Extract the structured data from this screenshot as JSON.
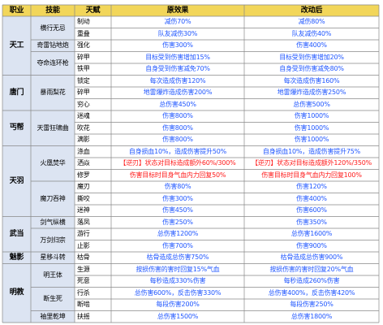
{
  "colors": {
    "header_bg": "#f2d65a",
    "class_bg": "#dce4f2",
    "talent_bg": "#ffffff",
    "blue_text": "#1f56ff",
    "red_text": "#ff1a1a",
    "border": "#888888"
  },
  "header": {
    "class": "职业",
    "skill": "技能",
    "talent": "天赋",
    "before": "原效果",
    "after": "改动后"
  },
  "classes": [
    {
      "name": "天工"
    },
    {
      "name": "唐门"
    },
    {
      "name": "丐帮"
    },
    {
      "name": "天羽"
    },
    {
      "name": "武当"
    },
    {
      "name": "魅影"
    },
    {
      "name": "明教"
    }
  ],
  "skills": [
    {
      "name": "横行无忌"
    },
    {
      "name": "奇雷钻地炮"
    },
    {
      "name": "夺命连环枪"
    },
    {
      "name": "暴雨梨花"
    },
    {
      "name": "天雷狂啸曲"
    },
    {
      "name": "火凰焚华"
    },
    {
      "name": "魔刀吞神"
    },
    {
      "name": "剑气纵横"
    },
    {
      "name": "万剑归宗"
    },
    {
      "name": "星移斗转"
    },
    {
      "name": "明王体"
    },
    {
      "name": "断生死"
    },
    {
      "name": "袖里乾坤"
    }
  ],
  "rows": [
    {
      "talent": "制动",
      "before": "减伤70%",
      "after": "减伤80%",
      "bc": "b",
      "ac": "b"
    },
    {
      "talent": "重叠",
      "before": "队友减伤30%",
      "after": "队友减伤40%",
      "bc": "b",
      "ac": "b"
    },
    {
      "talent": "强化",
      "before": "伤害300%",
      "after": "伤害400%",
      "bc": "b",
      "ac": "b"
    },
    {
      "talent": "碎甲",
      "before": "目标受到伤害增加15%",
      "after": "目标受到伤害增加20%",
      "bc": "b",
      "ac": "b"
    },
    {
      "talent": "铁甲",
      "before": "自身受到伤害减免70%",
      "after": "自身受到伤害减免80%",
      "bc": "b",
      "ac": "b"
    },
    {
      "talent": "锁定",
      "before": "每次造成伤害120%",
      "after": "每次造成伤害160%",
      "bc": "b",
      "ac": "b"
    },
    {
      "talent": "碎甲",
      "before": "地雷爆炸造成伤害200%",
      "after": "地雷爆炸造成伤害250%",
      "bc": "b",
      "ac": "b"
    },
    {
      "talent": "穷心",
      "before": "总伤害450%",
      "after": "总伤害500%",
      "bc": "b",
      "ac": "b"
    },
    {
      "talent": "迷魂",
      "before": "伤害800%",
      "after": "伤害1000%",
      "bc": "b",
      "ac": "b"
    },
    {
      "talent": "吹花",
      "before": "伤害800%",
      "after": "伤害1000%",
      "bc": "b",
      "ac": "b"
    },
    {
      "talent": "满影",
      "before": "伤害800%",
      "after": "伤害1000%",
      "bc": "b",
      "ac": "b"
    },
    {
      "talent": "涤血",
      "before": "自身损血10%，造成伤害提升50%",
      "after": "自身损血10%，造成伤害提升75%",
      "bc": "b",
      "ac": "b"
    },
    {
      "talent": "洒焱",
      "before": "【逆刃】状态对目标造成额外60%/300%",
      "after": "【逆刃】状态对目标造成额外120%/350%",
      "bc": "r",
      "ac": "r"
    },
    {
      "talent": "修罗",
      "before": "伤害目标时目身气血内力回复50%",
      "after": "伤害目标时目身气血内力回复100%",
      "bc": "r",
      "ac": "r"
    },
    {
      "talent": "魔刃",
      "before": "伤害80%",
      "after": "伤害120%",
      "bc": "b",
      "ac": "b"
    },
    {
      "talent": "撕咬",
      "before": "伤害300%",
      "after": "伤害400%",
      "bc": "b",
      "ac": "b"
    },
    {
      "talent": "迷神",
      "before": "伤害450%",
      "after": "伤害600%",
      "bc": "b",
      "ac": "b"
    },
    {
      "talent": "落凤",
      "before": "伤害250%",
      "after": "伤害350%",
      "bc": "b",
      "ac": "b"
    },
    {
      "talent": "游行",
      "before": "总伤害1200%",
      "after": "总伤害1600%",
      "bc": "b",
      "ac": "b"
    },
    {
      "talent": "止影",
      "before": "伤害700%",
      "after": "伤害900%",
      "bc": "b",
      "ac": "b"
    },
    {
      "talent": "枯骨",
      "before": "枯骨造成总伤害750%",
      "after": "枯骨造成总伤害900%",
      "bc": "b",
      "ac": "b"
    },
    {
      "talent": "生源",
      "before": "按损伤害的害时回复15%气血",
      "after": "按损伤害的害时回复20%气血",
      "bc": "b",
      "ac": "b"
    },
    {
      "talent": "死意",
      "before": "每秒造成330%伤害",
      "after": "每秒造成260%伤害",
      "bc": "b",
      "ac": "b"
    },
    {
      "talent": "行杀",
      "before": "总伤害600%，反击伤害330%",
      "after": "总伤害400%，反击伤害420%",
      "bc": "b",
      "ac": "b"
    },
    {
      "talent": "断啮",
      "before": "每段伤害200%",
      "after": "每段伤害250%",
      "bc": "b",
      "ac": "b"
    },
    {
      "talent": "扶摇",
      "before": "总伤害1500%",
      "after": "总伤害1800%",
      "bc": "b",
      "ac": "b"
    }
  ]
}
